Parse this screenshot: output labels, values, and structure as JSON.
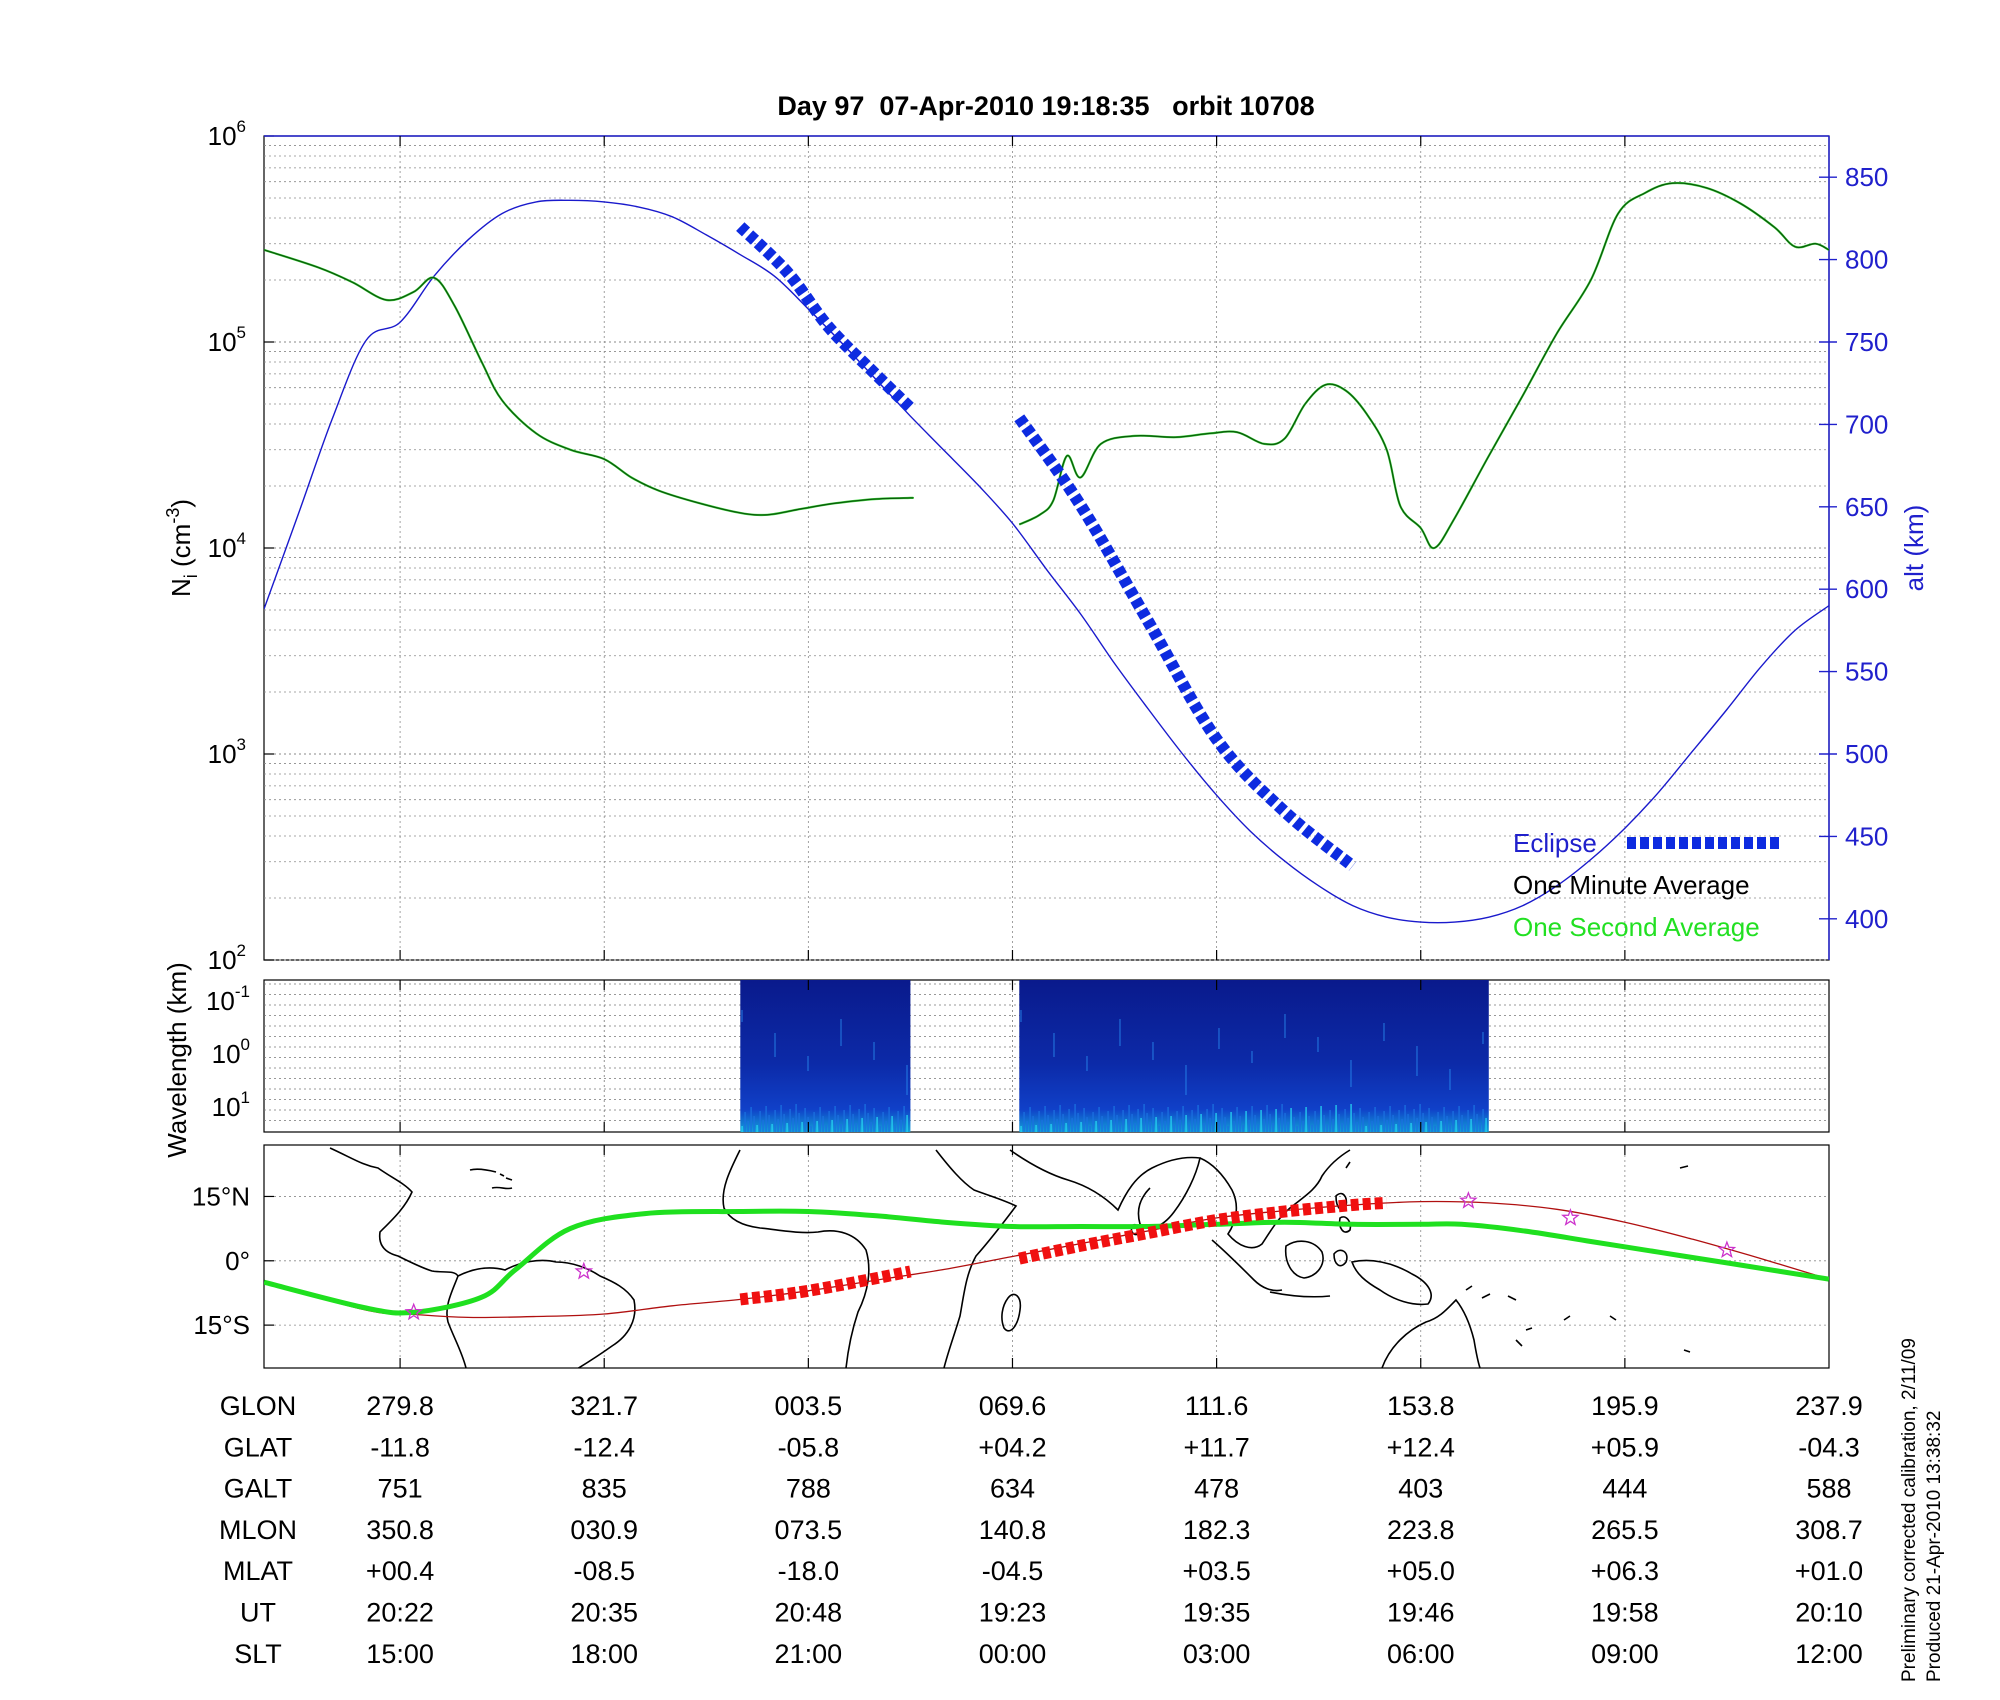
{
  "title": "Day 97  07-Apr-2010 19:18:35   orbit 10708",
  "side_note": {
    "line1": "Preliminary corrected calibration, 2/11/09",
    "line2": "Produced 21-Apr-2010 13:38:32"
  },
  "colors": {
    "density": "#0a5c0a",
    "density_second": "#3fd63f",
    "altitude": "#1a1acc",
    "eclipse": "#0d2be0",
    "map_track": "#1fe01f",
    "map_orbit": "#b01010",
    "map_eclipse": "#f01010",
    "star": "#cc33cc",
    "spectrogram": "#0a1d9a",
    "axis_right": "#2020cc"
  },
  "chart_data": [
    {
      "panel": "density",
      "type": "line",
      "x_unit": "SLT hours (continuous, 15:00 to 12:00 next day)",
      "xlim": [
        13,
        36
      ],
      "ylabel": "N",
      "ylabel_sub": "i",
      "ylabel_unit": "(cm",
      "ylabel_sup": "-3",
      "ylabel_close": ")",
      "y_scale": "log",
      "ylim": [
        100,
        1000000
      ],
      "y_tick_base": "10",
      "y_tick_exponents": [
        "2",
        "3",
        "4",
        "5",
        "6"
      ],
      "y2label": "alt (km)",
      "y2lim": [
        375,
        875
      ],
      "y2_ticks": [
        "400",
        "450",
        "500",
        "550",
        "600",
        "650",
        "700",
        "750",
        "800",
        "850"
      ],
      "grid": true,
      "legend": {
        "position": "bottom-right",
        "eclipse": "Eclipse",
        "minute": "One Minute Average",
        "second": "One Second Average"
      },
      "series": [
        {
          "kind": "density",
          "segments": [
            [
              [
                13.0,
                280000
              ],
              [
                13.8,
                230000
              ],
              [
                14.3,
                195000
              ],
              [
                14.8,
                160000
              ],
              [
                15.2,
                175000
              ],
              [
                15.5,
                205000
              ],
              [
                15.8,
                150000
              ],
              [
                16.2,
                80000
              ],
              [
                16.5,
                52000
              ],
              [
                17.0,
                36000
              ],
              [
                17.5,
                30000
              ],
              [
                18.0,
                27000
              ],
              [
                18.4,
                22000
              ],
              [
                18.8,
                19000
              ],
              [
                19.4,
                16500
              ],
              [
                20.0,
                14800
              ],
              [
                20.4,
                14500
              ],
              [
                20.9,
                15500
              ],
              [
                21.4,
                16500
              ],
              [
                22.0,
                17300
              ],
              [
                22.5,
                17500
              ],
              [
                22.5,
                17500
              ]
            ],
            [
              [
                24.1,
                13000
              ],
              [
                24.4,
                14500
              ],
              [
                24.6,
                17000
              ],
              [
                24.8,
                28000
              ],
              [
                25.0,
                22000
              ],
              [
                25.3,
                32000
              ],
              [
                25.8,
                35000
              ],
              [
                26.4,
                34500
              ],
              [
                26.9,
                36000
              ],
              [
                27.3,
                36500
              ],
              [
                27.7,
                32000
              ],
              [
                28.0,
                34000
              ],
              [
                28.3,
                50000
              ],
              [
                28.6,
                62000
              ],
              [
                28.9,
                58000
              ],
              [
                29.2,
                45000
              ],
              [
                29.5,
                30000
              ],
              [
                29.7,
                16000
              ],
              [
                30.0,
                12500
              ],
              [
                30.2,
                10000
              ],
              [
                30.5,
                14000
              ],
              [
                31.0,
                28000
              ],
              [
                31.5,
                55000
              ],
              [
                32.0,
                110000
              ],
              [
                32.5,
                200000
              ],
              [
                32.9,
                420000
              ],
              [
                33.3,
                530000
              ],
              [
                33.7,
                590000
              ],
              [
                34.2,
                560000
              ],
              [
                34.7,
                470000
              ],
              [
                35.2,
                360000
              ],
              [
                35.5,
                290000
              ],
              [
                35.8,
                300000
              ],
              [
                36.0,
                280000
              ]
            ]
          ]
        },
        {
          "kind": "altitude_km",
          "points": [
            [
              13.0,
              588
            ],
            [
              13.5,
              645
            ],
            [
              14.0,
              703
            ],
            [
              14.5,
              751
            ],
            [
              15.0,
              762
            ],
            [
              15.5,
              790
            ],
            [
              16.0,
              812
            ],
            [
              16.5,
              828
            ],
            [
              17.0,
              835
            ],
            [
              17.5,
              836
            ],
            [
              18.0,
              835
            ],
            [
              18.5,
              832
            ],
            [
              19.0,
              826
            ],
            [
              19.5,
              815
            ],
            [
              20.0,
              803
            ],
            [
              20.5,
              790
            ],
            [
              21.0,
              770
            ],
            [
              21.5,
              749
            ],
            [
              22.0,
              727
            ],
            [
              22.5,
              705
            ],
            [
              23.0,
              684
            ],
            [
              23.5,
              663
            ],
            [
              24.0,
              640
            ],
            [
              24.5,
              612
            ],
            [
              25.0,
              585
            ],
            [
              25.5,
              555
            ],
            [
              26.0,
              527
            ],
            [
              26.5,
              500
            ],
            [
              27.0,
              475
            ],
            [
              27.5,
              453
            ],
            [
              28.0,
              435
            ],
            [
              28.5,
              420
            ],
            [
              29.0,
              408
            ],
            [
              29.5,
              401
            ],
            [
              30.0,
              398
            ],
            [
              30.5,
              398
            ],
            [
              31.0,
              401
            ],
            [
              31.5,
              408
            ],
            [
              32.0,
              420
            ],
            [
              32.5,
              436
            ],
            [
              33.0,
              455
            ],
            [
              33.5,
              477
            ],
            [
              34.0,
              502
            ],
            [
              34.5,
              527
            ],
            [
              35.0,
              553
            ],
            [
              35.5,
              575
            ],
            [
              36.0,
              590
            ]
          ]
        },
        {
          "kind": "eclipse_km",
          "segments": [
            [
              [
                20.0,
                820
              ],
              [
                20.7,
                792
              ],
              [
                21.3,
                759
              ],
              [
                22.0,
                730
              ],
              [
                22.5,
                710
              ]
            ],
            [
              [
                24.1,
                704
              ],
              [
                25.0,
                651
              ],
              [
                26.0,
                580
              ],
              [
                27.0,
                509
              ],
              [
                28.0,
                465
              ],
              [
                29.0,
                432
              ]
            ]
          ]
        }
      ]
    },
    {
      "panel": "spectrogram",
      "type": "heatmap",
      "ylabel": "Wavelength (km)",
      "y_tick_base": "10",
      "y_tick_exponents": [
        "-1",
        "0",
        "1"
      ],
      "segments": [
        [
          20.0,
          22.5
        ],
        [
          24.1,
          31.0
        ]
      ]
    },
    {
      "panel": "map",
      "type": "line",
      "y_ticks": [
        "15°N",
        "0°",
        "15°S"
      ],
      "ylim": [
        -25,
        27
      ],
      "track": [
        [
          13.0,
          -5
        ],
        [
          14.5,
          -11
        ],
        [
          15.2,
          -12
        ],
        [
          16.2,
          -8.5
        ],
        [
          16.7,
          -2
        ],
        [
          17.5,
          7.5
        ],
        [
          18.6,
          11
        ],
        [
          20.0,
          11.5
        ],
        [
          21.0,
          11.5
        ],
        [
          22.0,
          10.5
        ],
        [
          23.0,
          9
        ],
        [
          24.0,
          8
        ],
        [
          25.0,
          8
        ],
        [
          26.0,
          8
        ],
        [
          27.0,
          8.5
        ],
        [
          28.0,
          9
        ],
        [
          29.0,
          8.5
        ],
        [
          30.0,
          8.5
        ],
        [
          30.6,
          8.5
        ],
        [
          31.5,
          7
        ],
        [
          32.5,
          4.5
        ],
        [
          33.5,
          2
        ],
        [
          34.5,
          -0.5
        ],
        [
          36.0,
          -4.3
        ]
      ],
      "orbit": [
        [
          13.0,
          -5
        ],
        [
          14.5,
          -11.5
        ],
        [
          15.2,
          -12.5
        ],
        [
          16.0,
          -13.2
        ],
        [
          17.0,
          -13
        ],
        [
          18.0,
          -12.4
        ],
        [
          19.0,
          -10.5
        ],
        [
          20.0,
          -9
        ],
        [
          21.0,
          -7
        ],
        [
          22.0,
          -4.5
        ],
        [
          23.0,
          -2
        ],
        [
          24.0,
          1
        ],
        [
          25.0,
          4
        ],
        [
          26.0,
          7
        ],
        [
          27.0,
          10
        ],
        [
          28.0,
          11.7
        ],
        [
          29.0,
          13
        ],
        [
          30.0,
          13.8
        ],
        [
          31.0,
          13.5
        ],
        [
          32.0,
          12
        ],
        [
          33.0,
          9
        ],
        [
          34.0,
          5
        ],
        [
          35.0,
          0.5
        ],
        [
          36.0,
          -4.3
        ]
      ],
      "eclipse_segments": [
        [
          [
            20.0,
            -9
          ],
          [
            21.0,
            -7
          ],
          [
            22.5,
            -2.5
          ]
        ],
        [
          [
            24.1,
            0.5
          ],
          [
            25.0,
            3.5
          ],
          [
            26.0,
            6.5
          ],
          [
            27.0,
            9.5
          ],
          [
            28.0,
            11.5
          ],
          [
            29.0,
            13
          ],
          [
            29.5,
            13.5
          ]
        ]
      ],
      "stars": [
        [
          15.2,
          -12
        ],
        [
          17.7,
          -2.5
        ],
        [
          30.7,
          14
        ],
        [
          32.2,
          10
        ],
        [
          34.5,
          2.5
        ]
      ]
    }
  ],
  "table": {
    "row_labels": [
      "GLON",
      "GLAT",
      "GALT",
      "MLON",
      "MLAT",
      "UT",
      "SLT"
    ],
    "columns": [
      {
        "slt": 15,
        "values": [
          "279.8",
          "-11.8",
          "751",
          "350.8",
          "+00.4",
          "20:22",
          "15:00"
        ]
      },
      {
        "slt": 18,
        "values": [
          "321.7",
          "-12.4",
          "835",
          "030.9",
          "-08.5",
          "20:35",
          "18:00"
        ]
      },
      {
        "slt": 21,
        "values": [
          "003.5",
          "-05.8",
          "788",
          "073.5",
          "-18.0",
          "20:48",
          "21:00"
        ]
      },
      {
        "slt": 24,
        "values": [
          "069.6",
          "+04.2",
          "634",
          "140.8",
          "-04.5",
          "19:23",
          "00:00"
        ]
      },
      {
        "slt": 27,
        "values": [
          "111.6",
          "+11.7",
          "478",
          "182.3",
          "+03.5",
          "19:35",
          "03:00"
        ]
      },
      {
        "slt": 30,
        "values": [
          "153.8",
          "+12.4",
          "403",
          "223.8",
          "+05.0",
          "19:46",
          "06:00"
        ]
      },
      {
        "slt": 33,
        "values": [
          "195.9",
          "+05.9",
          "444",
          "265.5",
          "+06.3",
          "19:58",
          "09:00"
        ]
      },
      {
        "slt": 36,
        "values": [
          "237.9",
          "-04.3",
          "588",
          "308.7",
          "+01.0",
          "20:10",
          "12:00"
        ]
      }
    ]
  }
}
